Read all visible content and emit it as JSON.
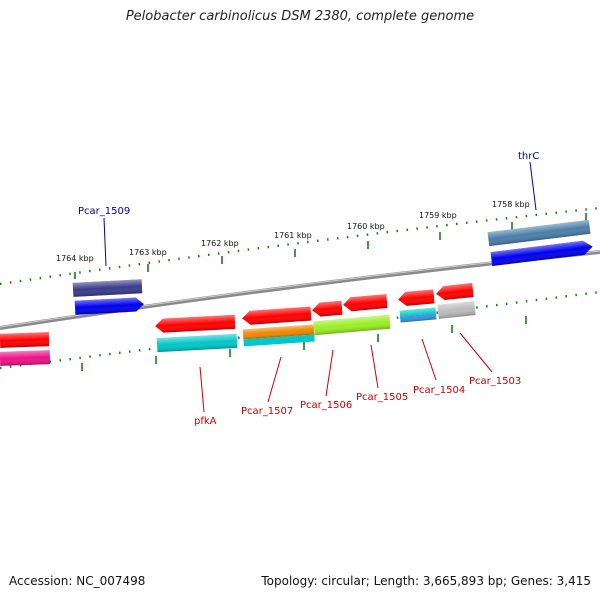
{
  "title": "Pelobacter carbinolicus DSM 2380, complete genome",
  "footer": {
    "accession": "Accession: NC_007498",
    "summary": "Topology: circular; Length: 3,665,893 bp; Genes: 3,415"
  },
  "ruler_labels": [
    "1764 kbp",
    "1763 kbp",
    "1762 kbp",
    "1761 kbp",
    "1760 kbp",
    "1759 kbp",
    "1758 kbp"
  ],
  "gene_labels": {
    "pcar_1509": "Pcar_1509",
    "thrc": "thrC",
    "pfka": "pfkA",
    "pcar_1507": "Pcar_1507",
    "pcar_1506": "Pcar_1506",
    "pcar_1505": "Pcar_1505",
    "pcar_1504": "Pcar_1504",
    "pcar_1503": "Pcar_1503"
  },
  "colors": {
    "forward_label": "#0000aa",
    "reverse_label": "#cc0000",
    "backbone": "#888888",
    "tick": "#1a7a1a",
    "gene_red": "#ff0000",
    "gene_blue": "#0000ee",
    "gene_navy": "#3a3a8c",
    "gene_steel": "#4a7eaa",
    "gene_cyan": "#00c8c8",
    "gene_orange": "#ee8800",
    "gene_lime": "#99ee22",
    "gene_pink": "#ee1188",
    "gene_grey": "#bbbbbb"
  }
}
